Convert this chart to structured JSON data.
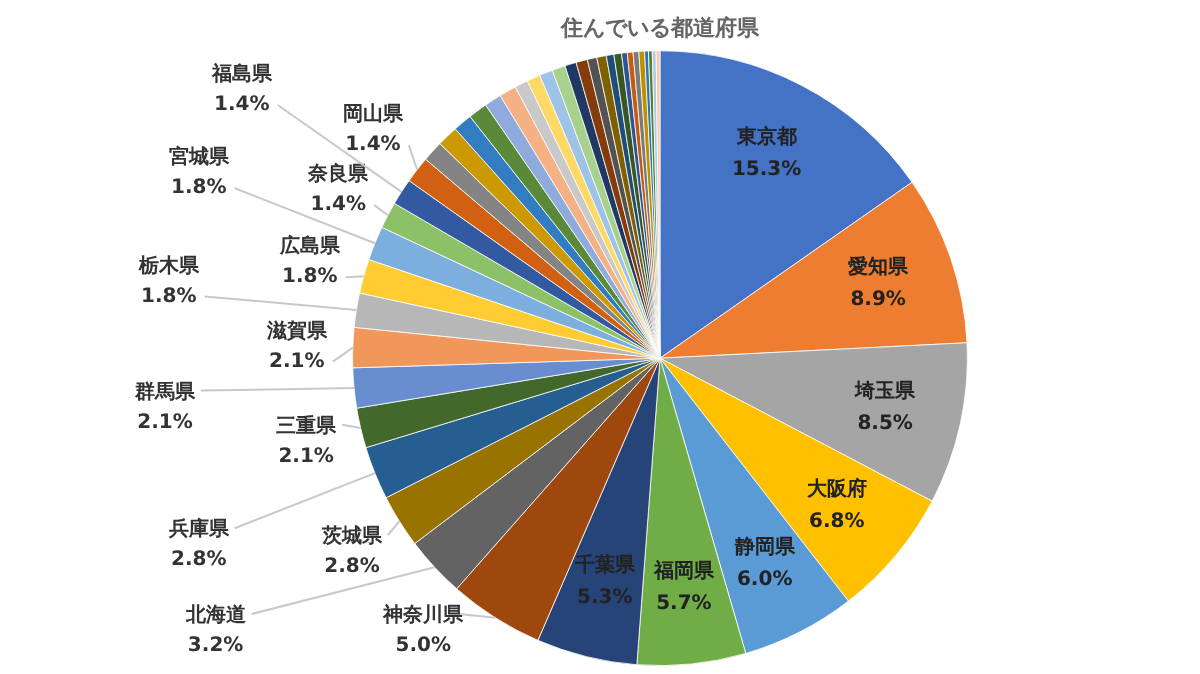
{
  "chart_data": {
    "type": "pie",
    "title": "住んでいる都道府県",
    "categories": [
      "東京都",
      "愛知県",
      "埼玉県",
      "大阪府",
      "静岡県",
      "福岡県",
      "千葉県",
      "神奈川県",
      "北海道",
      "茨城県",
      "兵庫県",
      "三重県",
      "群馬県",
      "滋賀県",
      "栃木県",
      "広島県",
      "宮城県",
      "奈良県",
      "福島県",
      "岡山県",
      null,
      null,
      null,
      null,
      null,
      null,
      null,
      null,
      null,
      null,
      null,
      null,
      null,
      null,
      null,
      null,
      null,
      null,
      null,
      null,
      null,
      null,
      null,
      null
    ],
    "values": [
      15.3,
      8.9,
      8.5,
      6.8,
      6.0,
      5.7,
      5.3,
      5.0,
      3.2,
      2.8,
      2.8,
      2.1,
      2.1,
      2.1,
      1.8,
      1.8,
      1.8,
      1.4,
      1.4,
      1.4,
      1.1,
      1.1,
      1.0,
      1.0,
      0.9,
      0.9,
      0.7,
      0.7,
      0.7,
      0.7,
      0.6,
      0.6,
      0.5,
      0.5,
      0.4,
      0.4,
      0.3,
      0.3,
      0.3,
      0.3,
      0.2,
      0.2,
      0.2,
      0.2
    ],
    "value_labels": [
      "15.3%",
      "8.9%",
      "8.5%",
      "6.8%",
      "6.0%",
      "5.7%",
      "5.3%",
      "5.0%",
      "3.2%",
      "2.8%",
      "2.8%",
      "2.1%",
      "2.1%",
      "2.1%",
      "1.8%",
      "1.8%",
      "1.8%",
      "1.4%",
      "1.4%",
      "1.4%",
      null,
      null,
      null,
      null,
      null,
      null,
      null,
      null,
      null,
      null,
      null,
      null,
      null,
      null,
      null,
      null,
      null,
      null,
      null,
      null,
      null,
      null,
      null,
      null
    ],
    "colors": [
      "#4472c4",
      "#ed7d31",
      "#a5a5a5",
      "#ffc000",
      "#5b9bd5",
      "#70ad47",
      "#264478",
      "#9e480e",
      "#636363",
      "#997300",
      "#255e91",
      "#43682b",
      "#698ed0",
      "#f1975a",
      "#b7b7b7",
      "#ffcd33",
      "#7cafdd",
      "#8cc168",
      "#335aa1",
      "#d26012",
      "#848484",
      "#cc9a00",
      "#327dc2",
      "#5a8a39",
      "#8faadc",
      "#f4b183",
      "#c9c9c9",
      "#ffd966",
      "#9dc3e6",
      "#a9d18e",
      "#203864",
      "#843c0c",
      "#525252",
      "#7f6000",
      "#1f4e79",
      "#385723",
      "#2f5597",
      "#c55a11",
      "#7b7b7b",
      "#bf9000",
      "#2e75b6",
      "#548235",
      "#b4c7e7",
      "#f8cbad"
    ],
    "legend": false
  }
}
